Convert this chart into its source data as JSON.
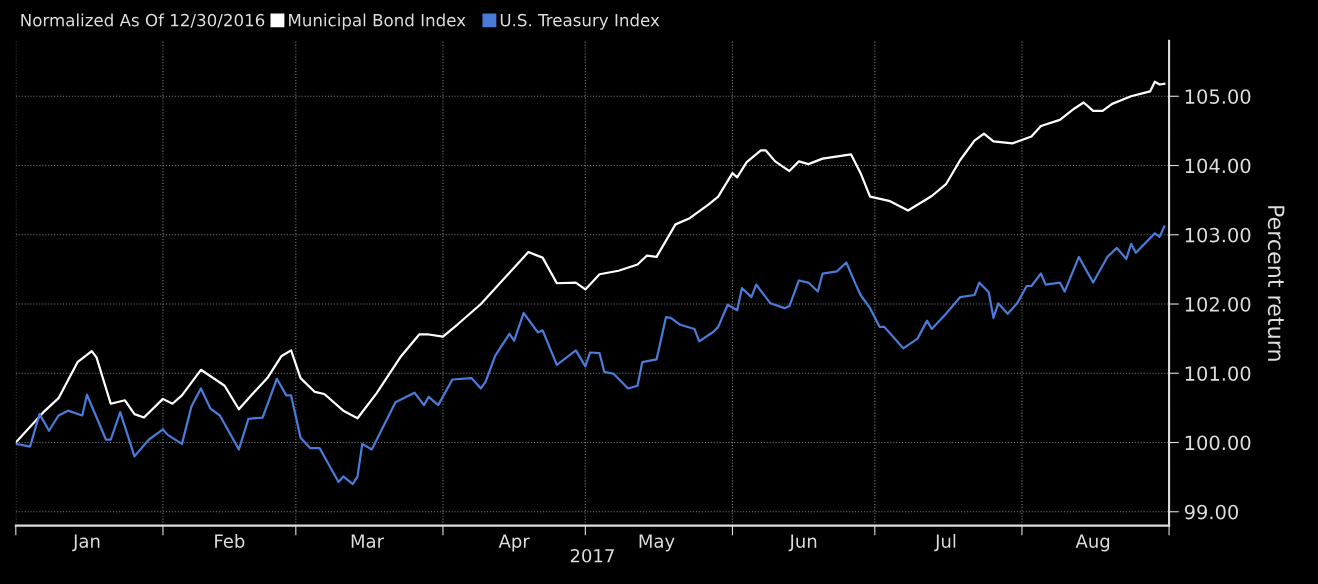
{
  "chart_data": {
    "type": "line",
    "legend_title": "Normalized As Of 12/30/2016",
    "ylabel": "Percent return",
    "xlabel": "2017",
    "legend": "top left",
    "grid": true,
    "line_style": "solid",
    "marker": "none",
    "xlim": [
      "2017-01-01",
      "2017-09-01"
    ],
    "xticks": [
      {
        "value": "2017-01-01",
        "label": null
      },
      {
        "value": "2017-01-16",
        "label": "Jan"
      },
      {
        "value": "2017-02-01",
        "label": null
      },
      {
        "value": "2017-02-15",
        "label": "Feb"
      },
      {
        "value": "2017-03-01",
        "label": null
      },
      {
        "value": "2017-03-16",
        "label": "Mar"
      },
      {
        "value": "2017-04-01",
        "label": null
      },
      {
        "value": "2017-04-16",
        "label": "Apr"
      },
      {
        "value": "2017-05-01",
        "label": null
      },
      {
        "value": "2017-05-16",
        "label": "May"
      },
      {
        "value": "2017-06-01",
        "label": null
      },
      {
        "value": "2017-06-16",
        "label": "Jun"
      },
      {
        "value": "2017-07-01",
        "label": null
      },
      {
        "value": "2017-07-16",
        "label": "Jul"
      },
      {
        "value": "2017-08-01",
        "label": null
      },
      {
        "value": "2017-08-16",
        "label": "Aug"
      },
      {
        "value": "2017-09-01",
        "label": null
      }
    ],
    "ylim": [
      98.8,
      105.8
    ],
    "yticks": [
      {
        "value": 99,
        "label": "99.00"
      },
      {
        "value": 100,
        "label": "100.00"
      },
      {
        "value": 101,
        "label": "101.00"
      },
      {
        "value": 102,
        "label": "102.00"
      },
      {
        "value": 103,
        "label": "103.00"
      },
      {
        "value": 104,
        "label": "104.00"
      },
      {
        "value": 105,
        "label": "105.00"
      }
    ],
    "series": [
      {
        "name": "Municipal Bond Index",
        "color": "#ffffff",
        "x": [
          "2017-01-01",
          "2017-01-07",
          "2017-01-10",
          "2017-01-14",
          "2017-01-17",
          "2017-01-18",
          "2017-01-21",
          "2017-01-24",
          "2017-01-26",
          "2017-01-28",
          "2017-02-01",
          "2017-02-03",
          "2017-02-05",
          "2017-02-09",
          "2017-02-14",
          "2017-02-17",
          "2017-02-20",
          "2017-02-23",
          "2017-02-26",
          "2017-02-28",
          "2017-03-02",
          "2017-03-05",
          "2017-03-07",
          "2017-03-11",
          "2017-03-14",
          "2017-03-18",
          "2017-03-23",
          "2017-03-27",
          "2017-03-29",
          "2017-04-01",
          "2017-04-04",
          "2017-04-09",
          "2017-04-19",
          "2017-04-22",
          "2017-04-25",
          "2017-04-29",
          "2017-05-01",
          "2017-05-04",
          "2017-05-08",
          "2017-05-12",
          "2017-05-14",
          "2017-05-16",
          "2017-05-20",
          "2017-05-23",
          "2017-05-27",
          "2017-05-29",
          "2017-06-01",
          "2017-06-02",
          "2017-06-04",
          "2017-06-07",
          "2017-06-08",
          "2017-06-10",
          "2017-06-13",
          "2017-06-15",
          "2017-06-17",
          "2017-06-20",
          "2017-06-26",
          "2017-06-28",
          "2017-06-30",
          "2017-07-04",
          "2017-07-08",
          "2017-07-13",
          "2017-07-16",
          "2017-07-19",
          "2017-07-22",
          "2017-07-24",
          "2017-07-26",
          "2017-07-30",
          "2017-08-03",
          "2017-08-05",
          "2017-08-09",
          "2017-08-12",
          "2017-08-14",
          "2017-08-16",
          "2017-08-18",
          "2017-08-20",
          "2017-08-24",
          "2017-08-28",
          "2017-08-29",
          "2017-08-30",
          "2017-08-31"
        ],
        "values": [
          100.0,
          100.45,
          100.64,
          101.16,
          101.32,
          101.23,
          100.56,
          100.61,
          100.41,
          100.36,
          100.63,
          100.56,
          100.68,
          101.05,
          100.82,
          100.48,
          100.71,
          100.93,
          101.25,
          101.33,
          100.93,
          100.73,
          100.7,
          100.46,
          100.35,
          100.71,
          101.23,
          101.56,
          101.56,
          101.53,
          101.7,
          102.0,
          102.75,
          102.67,
          102.3,
          102.31,
          102.21,
          102.43,
          102.48,
          102.57,
          102.7,
          102.68,
          103.15,
          103.24,
          103.44,
          103.55,
          103.89,
          103.83,
          104.05,
          104.22,
          104.22,
          104.06,
          103.92,
          104.06,
          104.02,
          104.1,
          104.16,
          103.89,
          103.55,
          103.49,
          103.35,
          103.56,
          103.73,
          104.08,
          104.36,
          104.46,
          104.35,
          104.32,
          104.42,
          104.57,
          104.66,
          104.82,
          104.91,
          104.79,
          104.79,
          104.89,
          105.0,
          105.07,
          105.21,
          105.17,
          105.18
        ]
      },
      {
        "name": "U.S. Treasury Index",
        "color": "#4a7bd8",
        "x": [
          "2017-01-01",
          "2017-01-04",
          "2017-01-06",
          "2017-01-08",
          "2017-01-10",
          "2017-01-12",
          "2017-01-15",
          "2017-01-16",
          "2017-01-20",
          "2017-01-21",
          "2017-01-23",
          "2017-01-26",
          "2017-01-29",
          "2017-02-01",
          "2017-02-02",
          "2017-02-05",
          "2017-02-07",
          "2017-02-09",
          "2017-02-11",
          "2017-02-13",
          "2017-02-17",
          "2017-02-19",
          "2017-02-22",
          "2017-02-25",
          "2017-02-27",
          "2017-02-28",
          "2017-03-02",
          "2017-03-04",
          "2017-03-06",
          "2017-03-10",
          "2017-03-11",
          "2017-03-13",
          "2017-03-14",
          "2017-03-15",
          "2017-03-17",
          "2017-03-22",
          "2017-03-26",
          "2017-03-28",
          "2017-03-29",
          "2017-03-31",
          "2017-04-03",
          "2017-04-07",
          "2017-04-09",
          "2017-04-10",
          "2017-04-12",
          "2017-04-15",
          "2017-04-16",
          "2017-04-18",
          "2017-04-21",
          "2017-04-22",
          "2017-04-25",
          "2017-04-29",
          "2017-05-01",
          "2017-05-02",
          "2017-05-04",
          "2017-05-05",
          "2017-05-07",
          "2017-05-10",
          "2017-05-12",
          "2017-05-13",
          "2017-05-16",
          "2017-05-18",
          "2017-05-19",
          "2017-05-21",
          "2017-05-24",
          "2017-05-25",
          "2017-05-28",
          "2017-05-29",
          "2017-05-31",
          "2017-06-02",
          "2017-06-03",
          "2017-06-05",
          "2017-06-06",
          "2017-06-09",
          "2017-06-12",
          "2017-06-13",
          "2017-06-15",
          "2017-06-17",
          "2017-06-19",
          "2017-06-20",
          "2017-06-23",
          "2017-06-25",
          "2017-06-27",
          "2017-06-28",
          "2017-06-30",
          "2017-07-02",
          "2017-07-03",
          "2017-07-07",
          "2017-07-10",
          "2017-07-12",
          "2017-07-13",
          "2017-07-16",
          "2017-07-19",
          "2017-07-22",
          "2017-07-23",
          "2017-07-25",
          "2017-07-26",
          "2017-07-27",
          "2017-07-29",
          "2017-07-31",
          "2017-08-02",
          "2017-08-03",
          "2017-08-05",
          "2017-08-06",
          "2017-08-09",
          "2017-08-10",
          "2017-08-13",
          "2017-08-16",
          "2017-08-19",
          "2017-08-21",
          "2017-08-23",
          "2017-08-24",
          "2017-08-25",
          "2017-08-29",
          "2017-08-30",
          "2017-08-31"
        ],
        "values": [
          99.98,
          99.94,
          100.41,
          100.17,
          100.39,
          100.46,
          100.39,
          100.69,
          100.04,
          100.04,
          100.44,
          99.8,
          100.04,
          100.19,
          100.11,
          99.98,
          100.52,
          100.78,
          100.49,
          100.39,
          99.9,
          100.34,
          100.36,
          100.92,
          100.68,
          100.68,
          100.07,
          99.92,
          99.92,
          99.43,
          99.51,
          99.4,
          99.51,
          99.98,
          99.9,
          100.58,
          100.72,
          100.54,
          100.66,
          100.54,
          100.91,
          100.93,
          100.78,
          100.88,
          101.25,
          101.57,
          101.47,
          101.87,
          101.59,
          101.62,
          101.12,
          101.33,
          101.1,
          101.3,
          101.29,
          101.02,
          100.99,
          100.78,
          100.82,
          101.16,
          101.2,
          101.81,
          101.8,
          101.7,
          101.64,
          101.46,
          101.6,
          101.67,
          101.99,
          101.91,
          102.23,
          102.1,
          102.28,
          102.01,
          101.94,
          101.97,
          102.34,
          102.31,
          102.18,
          102.44,
          102.47,
          102.6,
          102.28,
          102.13,
          101.94,
          101.67,
          101.67,
          101.36,
          101.5,
          101.76,
          101.64,
          101.86,
          102.1,
          102.13,
          102.31,
          102.17,
          101.8,
          102.01,
          101.86,
          102.01,
          102.26,
          102.26,
          102.44,
          102.28,
          102.31,
          102.18,
          102.68,
          102.31,
          102.68,
          102.81,
          102.65,
          102.87,
          102.74,
          103.02,
          102.97,
          103.12
        ]
      }
    ]
  }
}
